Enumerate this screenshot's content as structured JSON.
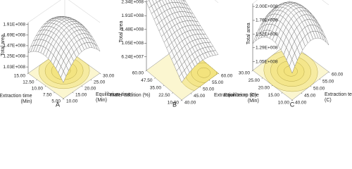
{
  "chart_data": [
    {
      "type": "surface",
      "panel_label": "A",
      "zlabel": "Total area",
      "zlim": [
        90000000,
        195000000
      ],
      "zticks": [
        {
          "value": 191000000,
          "label": "1.91E+008"
        },
        {
          "value": 169000000,
          "label": "1.69E+008"
        },
        {
          "value": 147000000,
          "label": "1.47E+008"
        },
        {
          "value": 125000000,
          "label": "1.25E+008"
        },
        {
          "value": 103000000,
          "label": "1.03E+008"
        }
      ],
      "xlabel": [
        "Extraction time",
        "(Min)"
      ],
      "xlim": [
        5,
        15
      ],
      "xticks": [
        {
          "value": 15,
          "label": "15.00"
        },
        {
          "value": 12.5,
          "label": "12.50"
        },
        {
          "value": 10,
          "label": "10.00"
        },
        {
          "value": 7.5,
          "label": "7.50"
        },
        {
          "value": 5,
          "label": "5.00"
        }
      ],
      "ylabel": [
        "Equilibrium time",
        "(Min)"
      ],
      "ylim": [
        10,
        30
      ],
      "yticks": [
        {
          "value": 30,
          "label": "30.00"
        },
        {
          "value": 25,
          "label": "25.00"
        },
        {
          "value": 20,
          "label": "20.00"
        },
        {
          "value": 15,
          "label": "15.00"
        },
        {
          "value": 10,
          "label": "10.00"
        }
      ]
    },
    {
      "type": "surface",
      "panel_label": "B",
      "zlabel": "Total area",
      "zlim": [
        20000000,
        240000000
      ],
      "zticks": [
        {
          "value": 234000000,
          "label": "2.34E+008"
        },
        {
          "value": 191000000,
          "label": "1.91E+008"
        },
        {
          "value": 148000000,
          "label": "1.48E+008"
        },
        {
          "value": 105000000,
          "label": "1.05E+008"
        },
        {
          "value": 62400000,
          "label": "6.24E+007"
        }
      ],
      "xlabel": [
        "Water addition (%)"
      ],
      "xlim": [
        10,
        60
      ],
      "xticks": [
        {
          "value": 60,
          "label": "60.00"
        },
        {
          "value": 47.5,
          "label": "47.50"
        },
        {
          "value": 35,
          "label": "35.00"
        },
        {
          "value": 22.5,
          "label": "22.50"
        },
        {
          "value": 10,
          "label": "10.00"
        }
      ],
      "ylabel": [
        "Extraction temp (C)"
      ],
      "ylim": [
        40,
        60
      ],
      "yticks": [
        {
          "value": 60,
          "label": "60.00"
        },
        {
          "value": 55,
          "label": "55.00"
        },
        {
          "value": 50,
          "label": "50.00"
        },
        {
          "value": 45,
          "label": "45.00"
        },
        {
          "value": 40,
          "label": "40.00"
        }
      ]
    },
    {
      "type": "surface",
      "panel_label": "C",
      "zlabel": "Total area",
      "zlim": [
        90000000,
        205000000
      ],
      "zticks": [
        {
          "value": 200000000,
          "label": "2.00E+008"
        },
        {
          "value": 176000000,
          "label": "1.76E+008"
        },
        {
          "value": 152000000,
          "label": "1.52E+008"
        },
        {
          "value": 129000000,
          "label": "1.29E+008"
        },
        {
          "value": 105000000,
          "label": "1.05E+008"
        }
      ],
      "xlabel": [
        "Equilibrium time",
        "(Min)"
      ],
      "xlim": [
        10,
        30
      ],
      "xticks": [
        {
          "value": 30,
          "label": "30.00"
        },
        {
          "value": 25,
          "label": "25.00"
        },
        {
          "value": 20,
          "label": "20.00"
        },
        {
          "value": 15,
          "label": "15.00"
        },
        {
          "value": 10,
          "label": "10.00"
        }
      ],
      "ylabel": [
        "Extraction temp",
        "(C)"
      ],
      "ylim": [
        40,
        60
      ],
      "yticks": [
        {
          "value": 60,
          "label": "60.00"
        },
        {
          "value": 55,
          "label": "55.00"
        },
        {
          "value": 50,
          "label": "50.00"
        },
        {
          "value": 45,
          "label": "45.00"
        },
        {
          "value": 40,
          "label": "40.00"
        }
      ]
    }
  ]
}
